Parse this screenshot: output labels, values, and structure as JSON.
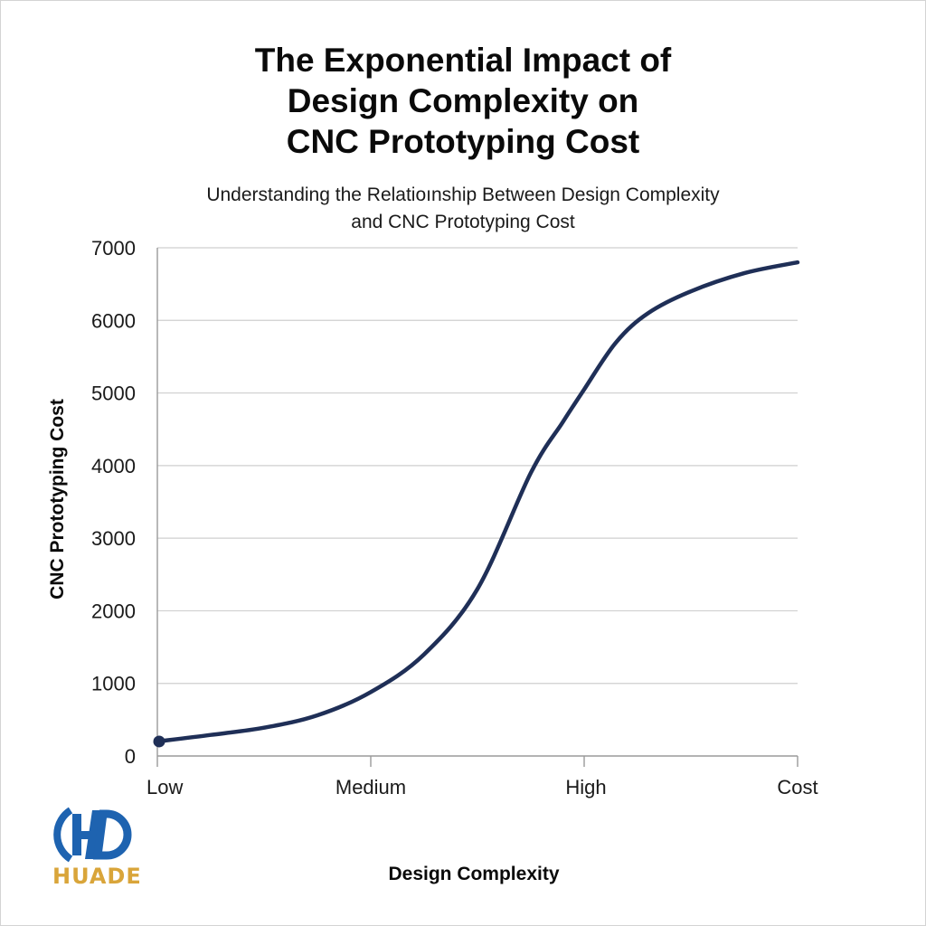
{
  "title_lines": [
    "The Exponential Impact of",
    "Design Complexity on",
    "CNC Prototyping Cost"
  ],
  "subtitle_lines": [
    "Understanding the Relatioınship Between Design Complexity",
    "and CNC Prototyping Cost"
  ],
  "logo": {
    "text": "HUADE",
    "icon": "hd-monogram-icon",
    "blue": "#1e63b0",
    "gold": "#d9a53a"
  },
  "colors": {
    "line": "#1f2f57",
    "grid": "#cfcfcf",
    "axis": "#9a9a9a"
  },
  "chart_data": {
    "type": "line",
    "title": "The Exponential Impact of Design Complexity on CNC Prototyping Cost",
    "subtitle": "Understanding the Relatioınship Between Design Complexity and CNC Prototyping Cost",
    "xlabel": "Design Complexity",
    "ylabel": "CNC Prototyping Cost",
    "x_tick_labels": [
      "Low",
      "Medium",
      "High",
      "Cost"
    ],
    "x_tick_positions": [
      0,
      1,
      2,
      3
    ],
    "xlim": [
      0,
      3
    ],
    "ylim": [
      0,
      7000
    ],
    "y_ticks": [
      0,
      1000,
      2000,
      3000,
      4000,
      5000,
      6000,
      7000
    ],
    "grid": "horizontal",
    "legend": "none",
    "series": [
      {
        "x": [
          0,
          0.25,
          0.5,
          0.75,
          1.0,
          1.25,
          1.5,
          1.75,
          1.9,
          2.0,
          2.15,
          2.3,
          2.5,
          2.75,
          3.0
        ],
        "values": [
          200,
          290,
          390,
          560,
          880,
          1400,
          2300,
          3900,
          4600,
          5050,
          5700,
          6100,
          6400,
          6650,
          6800
        ],
        "marker_first_point": true
      }
    ]
  }
}
